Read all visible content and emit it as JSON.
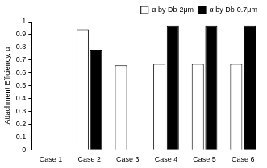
{
  "chart_data": {
    "type": "bar",
    "y_label": "Attachment Efficiency, α",
    "categories": [
      "Case 1",
      "Case 2",
      "Case 3",
      "Case 4",
      "Case 5",
      "Case 6"
    ],
    "series": [
      {
        "name": "α by Db-2μm",
        "color": "#ffffff",
        "values": [
          0,
          0.94,
          0.66,
          0.67,
          0.67,
          0.67
        ]
      },
      {
        "name": "α by Db-0.7μm",
        "color": "#000000",
        "values": [
          0,
          0.78,
          0,
          0.97,
          0.97,
          0.97
        ]
      }
    ],
    "ylim": [
      0,
      1
    ],
    "yticks": [
      0,
      0.1,
      0.2,
      0.3,
      0.4,
      0.5,
      0.6,
      0.7,
      0.8,
      0.9,
      1
    ],
    "grid": false,
    "legend": "top"
  }
}
